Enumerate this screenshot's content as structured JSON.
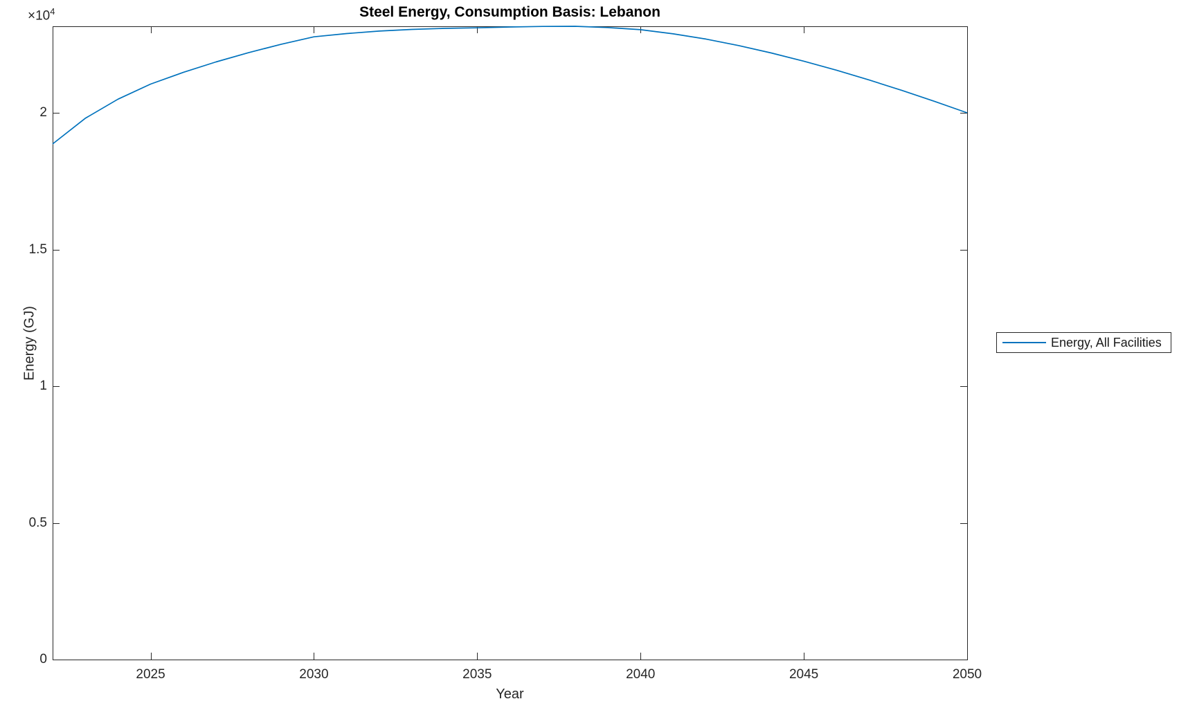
{
  "figure": {
    "background": "#ffffff"
  },
  "chart_data": {
    "type": "line",
    "title": "Steel Energy, Consumption Basis: Lebanon",
    "xlabel": "Year",
    "ylabel": "Energy (GJ)",
    "y_multiplier_base": "×10",
    "y_multiplier_exp": "4",
    "xlim": [
      2022,
      2050
    ],
    "ylim": [
      0,
      23165
    ],
    "x_ticks": [
      2025,
      2030,
      2035,
      2040,
      2045,
      2050
    ],
    "x_tick_labels": [
      "2025",
      "2030",
      "2035",
      "2040",
      "2045",
      "2050"
    ],
    "y_ticks": [
      0,
      5000,
      10000,
      15000,
      20000
    ],
    "y_tick_labels": [
      "0",
      "0.5",
      "1",
      "1.5",
      "2"
    ],
    "grid": false,
    "legend_position": "east-outside",
    "axis_color": "#262626",
    "series": [
      {
        "name": "Energy, All Facilities",
        "color": "#0072BD",
        "x": [
          2022,
          2023,
          2024,
          2025,
          2026,
          2027,
          2028,
          2029,
          2030,
          2031,
          2032,
          2033,
          2034,
          2035,
          2036,
          2037,
          2038,
          2039,
          2040,
          2041,
          2042,
          2043,
          2044,
          2045,
          2046,
          2047,
          2048,
          2049,
          2050
        ],
        "y": [
          18860,
          19800,
          20500,
          21050,
          21480,
          21860,
          22200,
          22510,
          22780,
          22900,
          22990,
          23050,
          23090,
          23110,
          23140,
          23160,
          23165,
          23120,
          23040,
          22890,
          22700,
          22460,
          22190,
          21890,
          21560,
          21200,
          20820,
          20420,
          20000
        ]
      }
    ]
  }
}
